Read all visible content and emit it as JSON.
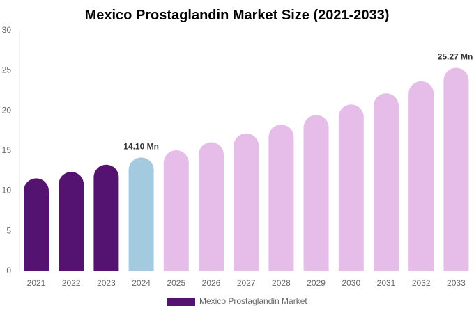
{
  "chart_data": {
    "type": "bar",
    "title": "Mexico Prostaglandin Market Size (2021-2033)",
    "categories": [
      "2021",
      "2022",
      "2023",
      "2024",
      "2025",
      "2026",
      "2027",
      "2028",
      "2029",
      "2030",
      "2031",
      "2032",
      "2033"
    ],
    "series": [
      {
        "name": "Mexico Prostaglandin Market",
        "values": [
          11.5,
          12.3,
          13.2,
          14.1,
          15.0,
          16.0,
          17.1,
          18.2,
          19.4,
          20.7,
          22.1,
          23.6,
          25.27
        ]
      }
    ],
    "ylim": [
      0,
      30
    ],
    "yticks": [
      0,
      5,
      10,
      15,
      20,
      25,
      30
    ],
    "data_labels": [
      {
        "index": 3,
        "text": "14.10 Mn"
      },
      {
        "index": 12,
        "text": "25.27 Mn"
      }
    ],
    "colors": {
      "historical": "#541371",
      "base_year": "#a3cade",
      "forecast": "#e6bce8"
    },
    "bar_color_groups": [
      "historical",
      "historical",
      "historical",
      "base_year",
      "forecast",
      "forecast",
      "forecast",
      "forecast",
      "forecast",
      "forecast",
      "forecast",
      "forecast",
      "forecast"
    ],
    "grid": false,
    "legend": "bottom-center"
  }
}
